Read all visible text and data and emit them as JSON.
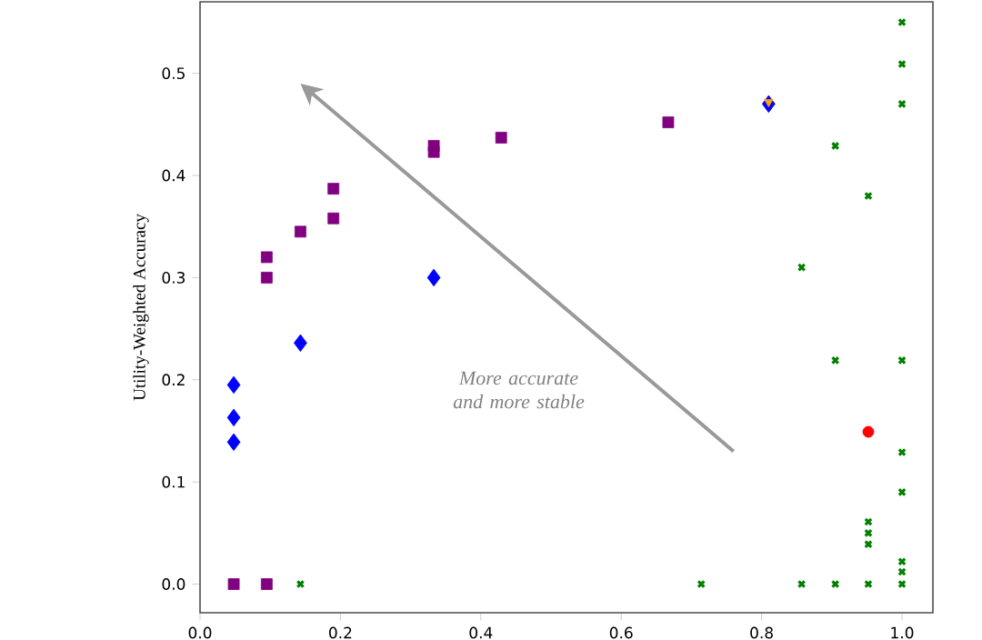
{
  "chart_data": {
    "type": "scatter",
    "ylabel": "Utility-Weighted Accuracy",
    "xlim": [
      0,
      1.044
    ],
    "ylim": [
      -0.028,
      0.57
    ],
    "xticks": [
      {
        "value": 0,
        "label": "0.0"
      },
      0.2,
      0.4,
      0.6,
      0.8,
      {
        "value": 1,
        "label": "1.0"
      }
    ],
    "yticks": [
      {
        "value": 0,
        "label": "0.0"
      },
      0.1,
      0.2,
      0.3,
      0.4,
      0.5
    ],
    "grid": false,
    "annotations": [
      "More accurate and more stable"
    ],
    "series": [
      {
        "color": "#800080",
        "marker": "square",
        "x": [
          0.048,
          0.095,
          0.095,
          0.095,
          0.143,
          0.19,
          0.19,
          0.333,
          0.333,
          0.429,
          0.667
        ],
        "values": [
          0.0,
          0.0,
          0.3,
          0.32,
          0.345,
          0.358,
          0.387,
          0.423,
          0.429,
          0.437,
          0.452
        ]
      },
      {
        "color": "#008000",
        "marker": "cross",
        "x": [
          0.143,
          0.714,
          0.857,
          0.905,
          0.952,
          1.0,
          1.0,
          1.0,
          1.0,
          0.905,
          0.952,
          0.857,
          0.905,
          1.0,
          1.0,
          1.0,
          0.952,
          0.952,
          0.952,
          1.0,
          1.0
        ],
        "values": [
          0.0,
          0.0,
          0.0,
          0.0,
          0.0,
          0.0,
          0.55,
          0.509,
          0.47,
          0.429,
          0.38,
          0.31,
          0.219,
          0.219,
          0.129,
          0.09,
          0.061,
          0.05,
          0.039,
          0.022,
          0.012
        ]
      },
      {
        "color": "#0000ff",
        "marker": "diamond",
        "x": [
          0.048,
          0.048,
          0.048,
          0.143,
          0.333,
          0.81
        ],
        "values": [
          0.195,
          0.163,
          0.139,
          0.236,
          0.3,
          0.47
        ]
      },
      {
        "color": "#ffa500",
        "marker": "triangle",
        "x": [
          0.81
        ],
        "values": [
          0.472
        ]
      },
      {
        "color": "#ff0000",
        "marker": "circle",
        "x": [
          0.952
        ],
        "values": [
          0.149
        ]
      }
    ]
  }
}
